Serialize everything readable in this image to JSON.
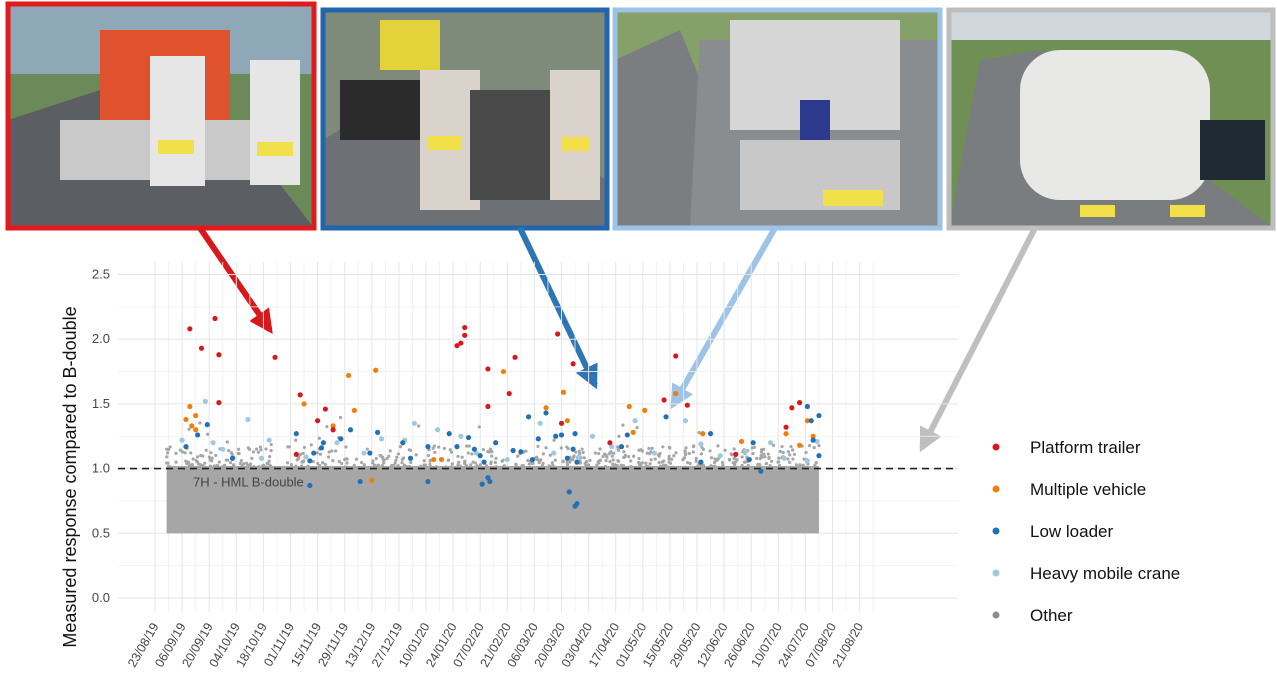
{
  "chart_data": {
    "type": "scatter",
    "ylabel": "Measured response compared to B-double",
    "xlabel": "",
    "ylim": [
      0.0,
      2.6
    ],
    "yticks": [
      "0.0",
      "0.5",
      "1.0",
      "1.5",
      "2.0",
      "2.5"
    ],
    "x_dates": [
      "23/08/19",
      "06/09/19",
      "20/09/19",
      "04/10/19",
      "18/10/19",
      "01/11/19",
      "15/11/19",
      "29/11/19",
      "13/12/19",
      "27/12/19",
      "10/01/20",
      "24/01/20",
      "07/02/20",
      "21/02/20",
      "06/03/20",
      "20/03/20",
      "03/04/20",
      "17/04/20",
      "01/05/20",
      "15/05/20",
      "29/05/20",
      "12/06/20",
      "26/06/20",
      "10/07/20",
      "24/07/20",
      "07/08/20",
      "21/08/20"
    ],
    "reference": {
      "y": 1.0,
      "label": "7H - HML B-double"
    },
    "grid": true,
    "legend_position": "right",
    "series": [
      {
        "name": "Platform trailer",
        "color": "#d7191c",
        "points": [
          [
            18,
            2.08
          ],
          [
            31,
            2.16
          ],
          [
            24,
            1.93
          ],
          [
            33,
            1.88
          ],
          [
            33,
            1.51
          ],
          [
            62,
            1.86
          ],
          [
            75,
            1.57
          ],
          [
            73,
            1.11
          ],
          [
            88,
            1.46
          ],
          [
            84,
            1.37
          ],
          [
            92,
            1.3
          ],
          [
            156,
            1.95
          ],
          [
            158,
            1.97
          ],
          [
            160,
            2.09
          ],
          [
            160,
            2.03
          ],
          [
            172,
            1.77
          ],
          [
            172,
            1.48
          ],
          [
            183,
            1.58
          ],
          [
            186,
            1.86
          ],
          [
            208,
            2.04
          ],
          [
            210,
            1.35
          ],
          [
            216,
            1.81
          ],
          [
            263,
            1.53
          ],
          [
            269,
            1.87
          ],
          [
            275,
            1.49
          ],
          [
            329,
            1.47
          ],
          [
            333,
            1.51
          ],
          [
            326,
            1.32
          ],
          [
            300,
            1.11
          ],
          [
            235,
            1.2
          ]
        ]
      },
      {
        "name": "Multiple vehicle",
        "color": "#f07f09",
        "points": [
          [
            16,
            1.38
          ],
          [
            19,
            1.33
          ],
          [
            18,
            1.48
          ],
          [
            21,
            1.41
          ],
          [
            21,
            1.3
          ],
          [
            77,
            1.5
          ],
          [
            100,
            1.72
          ],
          [
            103,
            1.45
          ],
          [
            114,
            1.76
          ],
          [
            112,
            0.91
          ],
          [
            92,
            1.33
          ],
          [
            148,
            1.07
          ],
          [
            144,
            1.07
          ],
          [
            180,
            1.75
          ],
          [
            202,
            1.47
          ],
          [
            211,
            1.59
          ],
          [
            213,
            1.37
          ],
          [
            245,
            1.48
          ],
          [
            253,
            1.45
          ],
          [
            269,
            1.58
          ],
          [
            247,
            1.28
          ],
          [
            283,
            1.27
          ],
          [
            303,
            1.21
          ],
          [
            326,
            1.27
          ],
          [
            333,
            1.18
          ],
          [
            337,
            1.37
          ],
          [
            340,
            1.25
          ]
        ]
      },
      {
        "name": "Low loader",
        "color": "#2271b5",
        "points": [
          [
            16,
            1.17
          ],
          [
            22,
            1.26
          ],
          [
            27,
            1.34
          ],
          [
            40,
            1.08
          ],
          [
            73,
            1.27
          ],
          [
            82,
            1.12
          ],
          [
            80,
            1.06
          ],
          [
            86,
            1.16
          ],
          [
            87,
            1.2
          ],
          [
            96,
            1.23
          ],
          [
            101,
            1.3
          ],
          [
            106,
            0.9
          ],
          [
            111,
            1.12
          ],
          [
            115,
            1.28
          ],
          [
            128,
            1.2
          ],
          [
            132,
            1.08
          ],
          [
            141,
            1.17
          ],
          [
            141,
            0.9
          ],
          [
            152,
            1.27
          ],
          [
            156,
            1.17
          ],
          [
            162,
            1.24
          ],
          [
            165,
            1.15
          ],
          [
            168,
            1.1
          ],
          [
            169,
            0.88
          ],
          [
            172,
            0.93
          ],
          [
            173,
            0.9
          ],
          [
            170,
            1.05
          ],
          [
            176,
            1.2
          ],
          [
            185,
            1.14
          ],
          [
            189,
            1.13
          ],
          [
            193,
            1.4
          ],
          [
            195,
            1.07
          ],
          [
            198,
            1.23
          ],
          [
            202,
            1.43
          ],
          [
            207,
            1.25
          ],
          [
            210,
            1.26
          ],
          [
            213,
            1.08
          ],
          [
            217,
            1.27
          ],
          [
            216,
            1.15
          ],
          [
            218,
            1.05
          ],
          [
            214,
            0.82
          ],
          [
            217,
            0.71
          ],
          [
            218,
            0.73
          ],
          [
            241,
            1.17
          ],
          [
            244,
            1.26
          ],
          [
            264,
            1.4
          ],
          [
            282,
            1.05
          ],
          [
            287,
            1.27
          ],
          [
            307,
            1.07
          ],
          [
            309,
            1.2
          ],
          [
            313,
            0.98
          ],
          [
            339,
            1.37
          ],
          [
            337,
            1.48
          ],
          [
            340,
            1.22
          ],
          [
            343,
            1.1
          ],
          [
            343,
            1.41
          ],
          [
            80,
            0.87
          ]
        ]
      },
      {
        "name": "Heavy mobile crane",
        "color": "#9ecae1",
        "points": [
          [
            14,
            1.22
          ],
          [
            26,
            1.52
          ],
          [
            30,
            1.2
          ],
          [
            35,
            1.15
          ],
          [
            55,
            1.08
          ],
          [
            59,
            1.22
          ],
          [
            78,
            1.09
          ],
          [
            94,
            1.2
          ],
          [
            108,
            1.12
          ],
          [
            117,
            1.23
          ],
          [
            129,
            1.22
          ],
          [
            134,
            1.35
          ],
          [
            146,
            1.3
          ],
          [
            158,
            1.25
          ],
          [
            166,
            1.12
          ],
          [
            182,
            1.07
          ],
          [
            199,
            1.35
          ],
          [
            206,
            1.12
          ],
          [
            219,
            1.09
          ],
          [
            226,
            1.25
          ],
          [
            236,
            1.17
          ],
          [
            248,
            1.37
          ],
          [
            258,
            1.12
          ],
          [
            274,
            1.37
          ],
          [
            282,
            1.19
          ],
          [
            292,
            1.1
          ],
          [
            305,
            1.13
          ],
          [
            318,
            1.2
          ],
          [
            325,
            1.08
          ],
          [
            337,
            1.06
          ],
          [
            342,
            1.21
          ],
          [
            48,
            1.38
          ]
        ]
      },
      {
        "name": "Other",
        "color": "#a6a6a6",
        "summary": "dense band of points from about 0.5 to about 1.1 across the whole period"
      }
    ]
  }
}
